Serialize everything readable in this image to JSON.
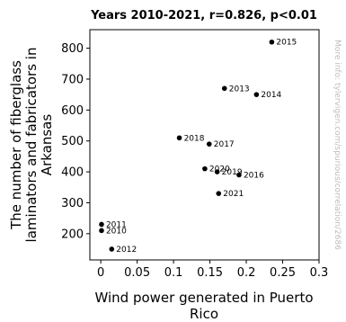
{
  "chart_data": {
    "type": "scatter",
    "title": "Years 2010-2021, r=0.826, p<0.01",
    "xlabel_lines": [
      "Wind power generated in Puerto",
      "Rico"
    ],
    "ylabel_lines": [
      "The number of fiberglass",
      "laminators and fabricators in",
      "Arkansas"
    ],
    "watermark": "More info: tylervigen.com/spurious/correlation/2686",
    "xlim": [
      -0.015,
      0.3
    ],
    "ylim": [
      115,
      860
    ],
    "xticks": [
      0,
      0.05,
      0.1,
      0.15,
      0.2,
      0.25,
      0.3
    ],
    "xtick_labels": [
      "0",
      "0.05",
      "0.1",
      "0.15",
      "0.2",
      "0.25",
      "0.3"
    ],
    "yticks": [
      200,
      300,
      400,
      500,
      600,
      700,
      800
    ],
    "ytick_labels": [
      "200",
      "300",
      "400",
      "500",
      "600",
      "700",
      "800"
    ],
    "points": [
      {
        "label": "2010",
        "x": 0.001,
        "y": 210
      },
      {
        "label": "2011",
        "x": 0.001,
        "y": 230
      },
      {
        "label": "2012",
        "x": 0.015,
        "y": 150
      },
      {
        "label": "2013",
        "x": 0.17,
        "y": 670
      },
      {
        "label": "2014",
        "x": 0.214,
        "y": 650
      },
      {
        "label": "2015",
        "x": 0.235,
        "y": 820
      },
      {
        "label": "2016",
        "x": 0.19,
        "y": 390
      },
      {
        "label": "2017",
        "x": 0.149,
        "y": 490
      },
      {
        "label": "2018",
        "x": 0.108,
        "y": 510
      },
      {
        "label": "2019",
        "x": 0.16,
        "y": 400
      },
      {
        "label": "2020",
        "x": 0.143,
        "y": 410
      },
      {
        "label": "2021",
        "x": 0.162,
        "y": 330
      }
    ]
  }
}
